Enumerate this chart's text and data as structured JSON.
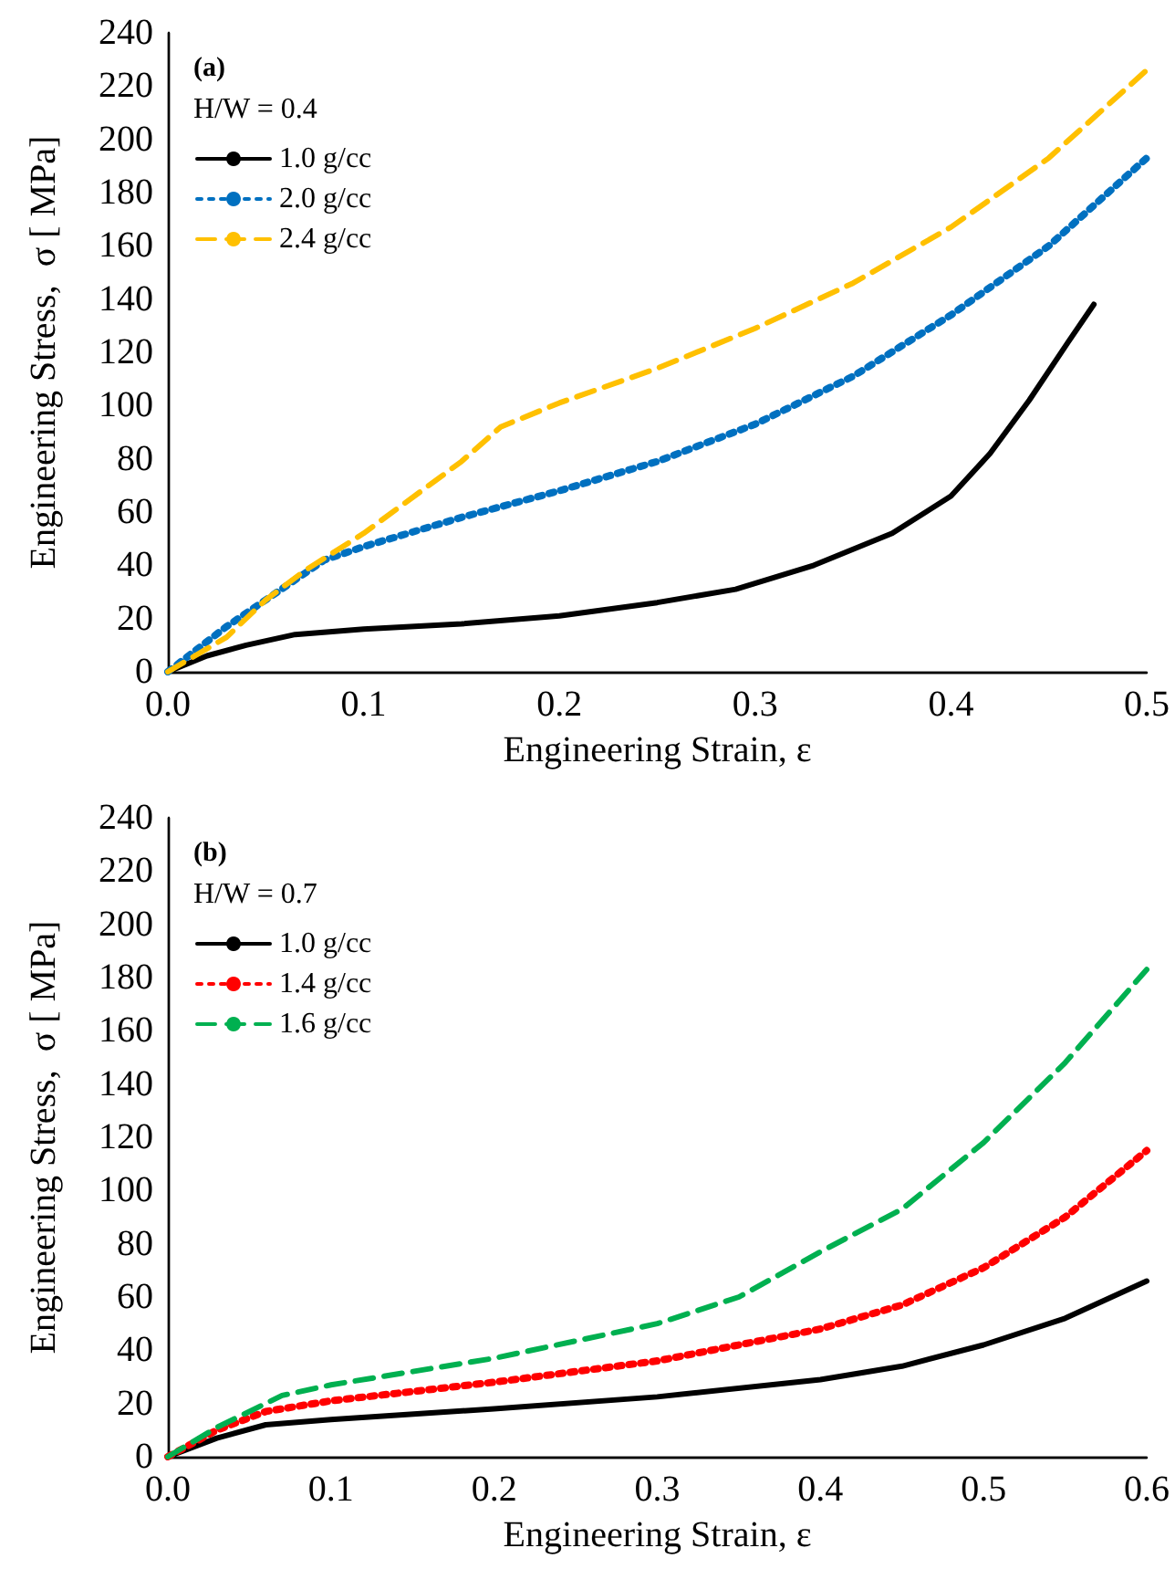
{
  "chart_data": [
    {
      "type": "line",
      "xlabel": "Engineering Strain, ε",
      "ylabel": "Engineering Stress,  σ [ MPa]",
      "annotations": [
        "(a)",
        "H/W = 0.4"
      ],
      "xlim": [
        0,
        0.5
      ],
      "xticks": [
        {
          "value": 0,
          "label": "0.0"
        },
        0.1,
        0.2,
        0.3,
        0.4,
        0.5
      ],
      "ylim": [
        0,
        240
      ],
      "yticks": [
        0,
        20,
        40,
        60,
        80,
        100,
        120,
        140,
        160,
        180,
        200,
        220,
        240
      ],
      "grid": false,
      "legend": "top left",
      "marker": "none",
      "series": [
        {
          "name": "1.0 g/cc",
          "color": "#000000",
          "line_style": "solid",
          "x": [
            0,
            0.02,
            0.04,
            0.065,
            0.1,
            0.15,
            0.2,
            0.25,
            0.29,
            0.33,
            0.37,
            0.4,
            0.42,
            0.44,
            0.46,
            0.473
          ],
          "values": [
            0,
            6,
            10,
            14,
            16,
            18,
            21,
            26,
            31,
            40,
            52,
            66,
            82,
            102,
            124,
            138
          ]
        },
        {
          "name": "2.0 g/cc",
          "color": "#0070c0",
          "line_style": "dotted",
          "x": [
            0,
            0.03,
            0.06,
            0.08,
            0.1,
            0.15,
            0.2,
            0.25,
            0.3,
            0.35,
            0.4,
            0.45,
            0.5
          ],
          "values": [
            0,
            17,
            32,
            42,
            47,
            58,
            68,
            79,
            93,
            111,
            134,
            160,
            193
          ]
        },
        {
          "name": "2.4 g/cc",
          "color": "#ffc000",
          "line_style": "dashed",
          "x": [
            0,
            0.03,
            0.05,
            0.07,
            0.1,
            0.15,
            0.17,
            0.2,
            0.25,
            0.3,
            0.35,
            0.4,
            0.45,
            0.5
          ],
          "values": [
            0,
            13,
            27,
            38,
            52,
            79,
            92,
            101,
            114,
            129,
            146,
            167,
            193,
            226
          ]
        }
      ]
    },
    {
      "type": "line",
      "xlabel": "Engineering Strain, ε",
      "ylabel": "Engineering Stress,  σ [ MPa]",
      "annotations": [
        "(b)",
        "H/W = 0.7"
      ],
      "xlim": [
        0,
        0.6
      ],
      "xticks": [
        {
          "value": 0,
          "label": "0.0"
        },
        0.1,
        0.2,
        0.3,
        0.4,
        0.5,
        0.6
      ],
      "ylim": [
        0,
        240
      ],
      "yticks": [
        0,
        20,
        40,
        60,
        80,
        100,
        120,
        140,
        160,
        180,
        200,
        220,
        240
      ],
      "grid": false,
      "legend": "top left",
      "marker": "none",
      "series": [
        {
          "name": "1.0 g/cc",
          "color": "#000000",
          "line_style": "solid",
          "x": [
            0,
            0.03,
            0.06,
            0.1,
            0.2,
            0.3,
            0.4,
            0.45,
            0.5,
            0.55,
            0.6
          ],
          "values": [
            0,
            7,
            12,
            14,
            18,
            22.5,
            29,
            34,
            42,
            52,
            66
          ]
        },
        {
          "name": "1.4 g/cc",
          "color": "#ff0000",
          "line_style": "dotted",
          "x": [
            0,
            0.03,
            0.06,
            0.1,
            0.2,
            0.3,
            0.4,
            0.45,
            0.5,
            0.55,
            0.6
          ],
          "values": [
            0,
            10,
            17,
            21,
            28,
            36,
            48,
            57,
            71,
            90,
            115
          ]
        },
        {
          "name": "1.6 g/cc",
          "color": "#00b050",
          "line_style": "dashed",
          "x": [
            0,
            0.03,
            0.07,
            0.1,
            0.2,
            0.3,
            0.35,
            0.4,
            0.45,
            0.5,
            0.55,
            0.6
          ],
          "values": [
            0,
            11,
            23,
            27,
            37,
            50,
            60,
            77,
            93,
            118,
            148,
            183
          ]
        }
      ]
    }
  ]
}
